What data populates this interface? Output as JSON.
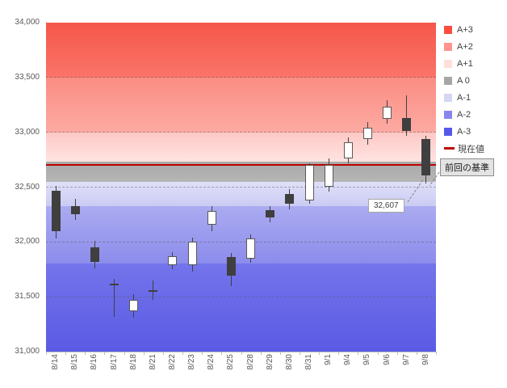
{
  "chart_data": {
    "type": "candlestick",
    "title": "",
    "ylim": [
      31000,
      34000
    ],
    "yticks": [
      {
        "value": 31000,
        "label": "31,000"
      },
      {
        "value": 31500,
        "label": "31,500"
      },
      {
        "value": 32000,
        "label": "32,000"
      },
      {
        "value": 32500,
        "label": "32,500"
      },
      {
        "value": 33000,
        "label": "33,000"
      },
      {
        "value": 33500,
        "label": "33,500"
      },
      {
        "value": 34000,
        "label": "34,000"
      }
    ],
    "candles": [
      {
        "date": "8/14",
        "open": 32470,
        "high": 32510,
        "low": 32030,
        "close": 32100
      },
      {
        "date": "8/15",
        "open": 32330,
        "high": 32390,
        "low": 32200,
        "close": 32250
      },
      {
        "date": "8/16",
        "open": 31950,
        "high": 32010,
        "low": 31760,
        "close": 31820
      },
      {
        "date": "8/17",
        "open": 31620,
        "high": 31660,
        "low": 31320,
        "close": 31610
      },
      {
        "date": "8/18",
        "open": 31370,
        "high": 31520,
        "low": 31310,
        "close": 31470
      },
      {
        "date": "8/21",
        "open": 31560,
        "high": 31650,
        "low": 31470,
        "close": 31550
      },
      {
        "date": "8/22",
        "open": 31790,
        "high": 31910,
        "low": 31750,
        "close": 31870
      },
      {
        "date": "8/23",
        "open": 31790,
        "high": 32040,
        "low": 31730,
        "close": 32000
      },
      {
        "date": "8/24",
        "open": 32160,
        "high": 32330,
        "low": 32100,
        "close": 32280
      },
      {
        "date": "8/25",
        "open": 31860,
        "high": 31900,
        "low": 31600,
        "close": 31690
      },
      {
        "date": "8/28",
        "open": 31850,
        "high": 32070,
        "low": 31810,
        "close": 32030
      },
      {
        "date": "8/29",
        "open": 32290,
        "high": 32330,
        "low": 32180,
        "close": 32220
      },
      {
        "date": "8/30",
        "open": 32440,
        "high": 32480,
        "low": 32300,
        "close": 32350
      },
      {
        "date": "8/31",
        "open": 32380,
        "high": 32720,
        "low": 32350,
        "close": 32700
      },
      {
        "date": "9/1",
        "open": 32500,
        "high": 32760,
        "low": 32460,
        "close": 32700
      },
      {
        "date": "9/4",
        "open": 32760,
        "high": 32950,
        "low": 32720,
        "close": 32910
      },
      {
        "date": "9/5",
        "open": 32940,
        "high": 33090,
        "low": 32890,
        "close": 33040
      },
      {
        "date": "9/6",
        "open": 33120,
        "high": 33290,
        "low": 33080,
        "close": 33230
      },
      {
        "date": "9/7",
        "open": 33130,
        "high": 33340,
        "low": 32970,
        "close": 33010
      },
      {
        "date": "9/8",
        "open": 32940,
        "high": 32970,
        "low": 32530,
        "close": 32607
      }
    ],
    "bands": [
      {
        "label": "A+3",
        "from": 33500,
        "to": 34000,
        "top_color": "#f5574a",
        "bottom_color": "#fa7468"
      },
      {
        "label": "A+2",
        "from": 33000,
        "to": 33500,
        "top_color": "#fb8d83",
        "bottom_color": "#fcaaa2"
      },
      {
        "label": "A+1",
        "from": 32730,
        "to": 33000,
        "top_color": "#fdc9c5",
        "bottom_color": "#ffe3e1"
      },
      {
        "label": "A 0",
        "from": 32550,
        "to": 32730,
        "top_color": "#a9a9a9",
        "bottom_color": "#b5b5b5"
      },
      {
        "label": "A-1",
        "from": 32330,
        "to": 32550,
        "top_color": "#e0e0f8",
        "bottom_color": "#cbcbf4"
      },
      {
        "label": "A-2",
        "from": 31800,
        "to": 32330,
        "top_color": "#ababf1",
        "bottom_color": "#8c8cec"
      },
      {
        "label": "A-3",
        "from": 31000,
        "to": 31800,
        "top_color": "#7474eb",
        "bottom_color": "#5a5ae5"
      }
    ],
    "current_value": {
      "label": "現在値",
      "value": 32700,
      "color": "#c00000"
    },
    "legend": [
      {
        "label": "A+3",
        "color": "#ff4b3e",
        "type": "box"
      },
      {
        "label": "A+2",
        "color": "#ff958c",
        "type": "box"
      },
      {
        "label": "A+1",
        "color": "#ffdedb",
        "type": "box"
      },
      {
        "label": "A 0",
        "color": "#a6a6a6",
        "type": "box"
      },
      {
        "label": "A-1",
        "color": "#d6d6f5",
        "type": "box"
      },
      {
        "label": "A-2",
        "color": "#8888ec",
        "type": "box"
      },
      {
        "label": "A-3",
        "color": "#5757e8",
        "type": "box"
      },
      {
        "label": "現在値",
        "color": "#c00000",
        "type": "line"
      }
    ],
    "annotations": {
      "close_label": {
        "text": "32,607",
        "value": 32607
      },
      "baseline_label": {
        "text": "前回の基準"
      }
    },
    "candle_colors": {
      "up_fill": "#ffffff",
      "up_border": "#595959",
      "down_fill": "#3f3f3f",
      "down_border": "#3f3f3f",
      "wick": "#404040"
    }
  }
}
